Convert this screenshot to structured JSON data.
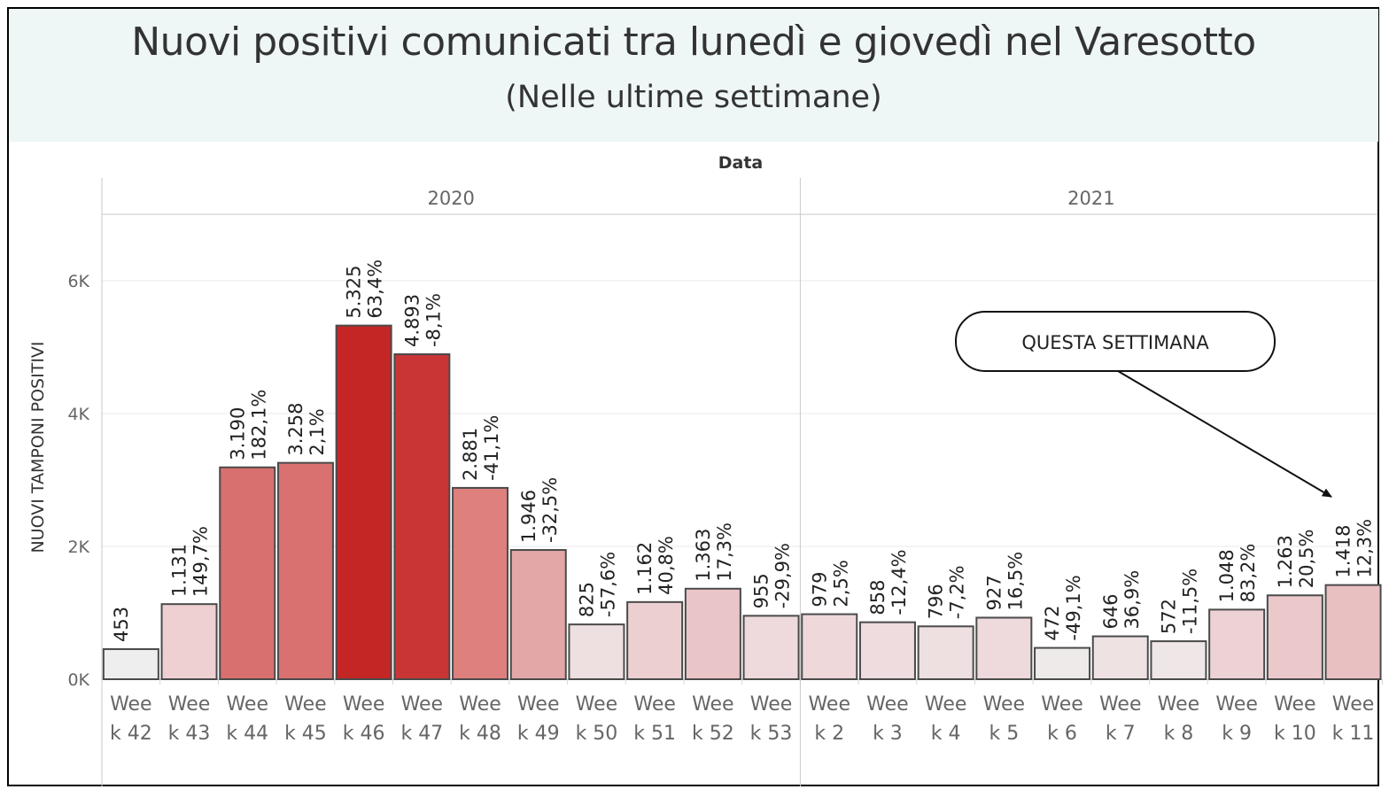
{
  "header": {
    "title": "Nuovi positivi comunicati tra lunedì e giovedì nel Varesotto",
    "subtitle": "(Nelle ultime settimane)"
  },
  "callout": {
    "label": "QUESTA SETTIMANA"
  },
  "chart_data": {
    "type": "bar",
    "column_header": "Data",
    "ylabel": "NUOVI TAMPONI POSITIVI",
    "xlabel": "",
    "ylim": [
      0,
      7000
    ],
    "yticks": [
      0,
      2000,
      4000,
      6000
    ],
    "ytick_labels": [
      "0K",
      "2K",
      "4K",
      "6K"
    ],
    "grid": true,
    "groups": [
      {
        "year": "2020",
        "bars": [
          {
            "line1": "Wee",
            "line2": "k 42",
            "value": 453,
            "value_label": "453",
            "pct_label": "",
            "color": "#eeeeee"
          },
          {
            "line1": "Wee",
            "line2": "k 43",
            "value": 1131,
            "value_label": "1.131",
            "pct_label": "149,7%",
            "color": "#eed0d2"
          },
          {
            "line1": "Wee",
            "line2": "k 44",
            "value": 3190,
            "value_label": "3.190",
            "pct_label": "182,1%",
            "color": "#d8706f"
          },
          {
            "line1": "Wee",
            "line2": "k 45",
            "value": 3258,
            "value_label": "3.258",
            "pct_label": "2,1%",
            "color": "#d87170"
          },
          {
            "line1": "Wee",
            "line2": "k 46",
            "value": 5325,
            "value_label": "5.325",
            "pct_label": "63,4%",
            "color": "#c42626"
          },
          {
            "line1": "Wee",
            "line2": "k 47",
            "value": 4893,
            "value_label": "4.893",
            "pct_label": "-8,1%",
            "color": "#c93535"
          },
          {
            "line1": "Wee",
            "line2": "k 48",
            "value": 2881,
            "value_label": "2.881",
            "pct_label": "-41,1%",
            "color": "#dd807e"
          },
          {
            "line1": "Wee",
            "line2": "k 49",
            "value": 1946,
            "value_label": "1.946",
            "pct_label": "-32,5%",
            "color": "#e3a7a8"
          },
          {
            "line1": "Wee",
            "line2": "k 50",
            "value": 825,
            "value_label": "825",
            "pct_label": "-57,6%",
            "color": "#eedfe0"
          },
          {
            "line1": "Wee",
            "line2": "k 51",
            "value": 1162,
            "value_label": "1.162",
            "pct_label": "40,8%",
            "color": "#ebcfd1"
          },
          {
            "line1": "Wee",
            "line2": "k 52",
            "value": 1363,
            "value_label": "1.363",
            "pct_label": "17,3%",
            "color": "#eac5c8"
          },
          {
            "line1": "Wee",
            "line2": "k 53",
            "value": 955,
            "value_label": "955",
            "pct_label": "-29,9%",
            "color": "#eedadc"
          }
        ]
      },
      {
        "year": "2021",
        "bars": [
          {
            "line1": "Wee",
            "line2": "k 2",
            "value": 979,
            "value_label": "979",
            "pct_label": "2,5%",
            "color": "#eed8da"
          },
          {
            "line1": "Wee",
            "line2": "k 3",
            "value": 858,
            "value_label": "858",
            "pct_label": "-12,4%",
            "color": "#eedcde"
          },
          {
            "line1": "Wee",
            "line2": "k 4",
            "value": 796,
            "value_label": "796",
            "pct_label": "-7,2%",
            "color": "#eedfe0"
          },
          {
            "line1": "Wee",
            "line2": "k 5",
            "value": 927,
            "value_label": "927",
            "pct_label": "16,5%",
            "color": "#eedadc"
          },
          {
            "line1": "Wee",
            "line2": "k 6",
            "value": 472,
            "value_label": "472",
            "pct_label": "-49,1%",
            "color": "#eeeaea"
          },
          {
            "line1": "Wee",
            "line2": "k 7",
            "value": 646,
            "value_label": "646",
            "pct_label": "36,9%",
            "color": "#eee2e3"
          },
          {
            "line1": "Wee",
            "line2": "k 8",
            "value": 572,
            "value_label": "572",
            "pct_label": "-11,5%",
            "color": "#eee6e7"
          },
          {
            "line1": "Wee",
            "line2": "k 9",
            "value": 1048,
            "value_label": "1.048",
            "pct_label": "83,2%",
            "color": "#ecd2d4"
          },
          {
            "line1": "Wee",
            "line2": "k 10",
            "value": 1263,
            "value_label": "1.263",
            "pct_label": "20,5%",
            "color": "#ebc9cb"
          },
          {
            "line1": "Wee",
            "line2": "k 11",
            "value": 1418,
            "value_label": "1.418",
            "pct_label": "12,3%",
            "color": "#e9c0c2"
          }
        ]
      }
    ]
  }
}
